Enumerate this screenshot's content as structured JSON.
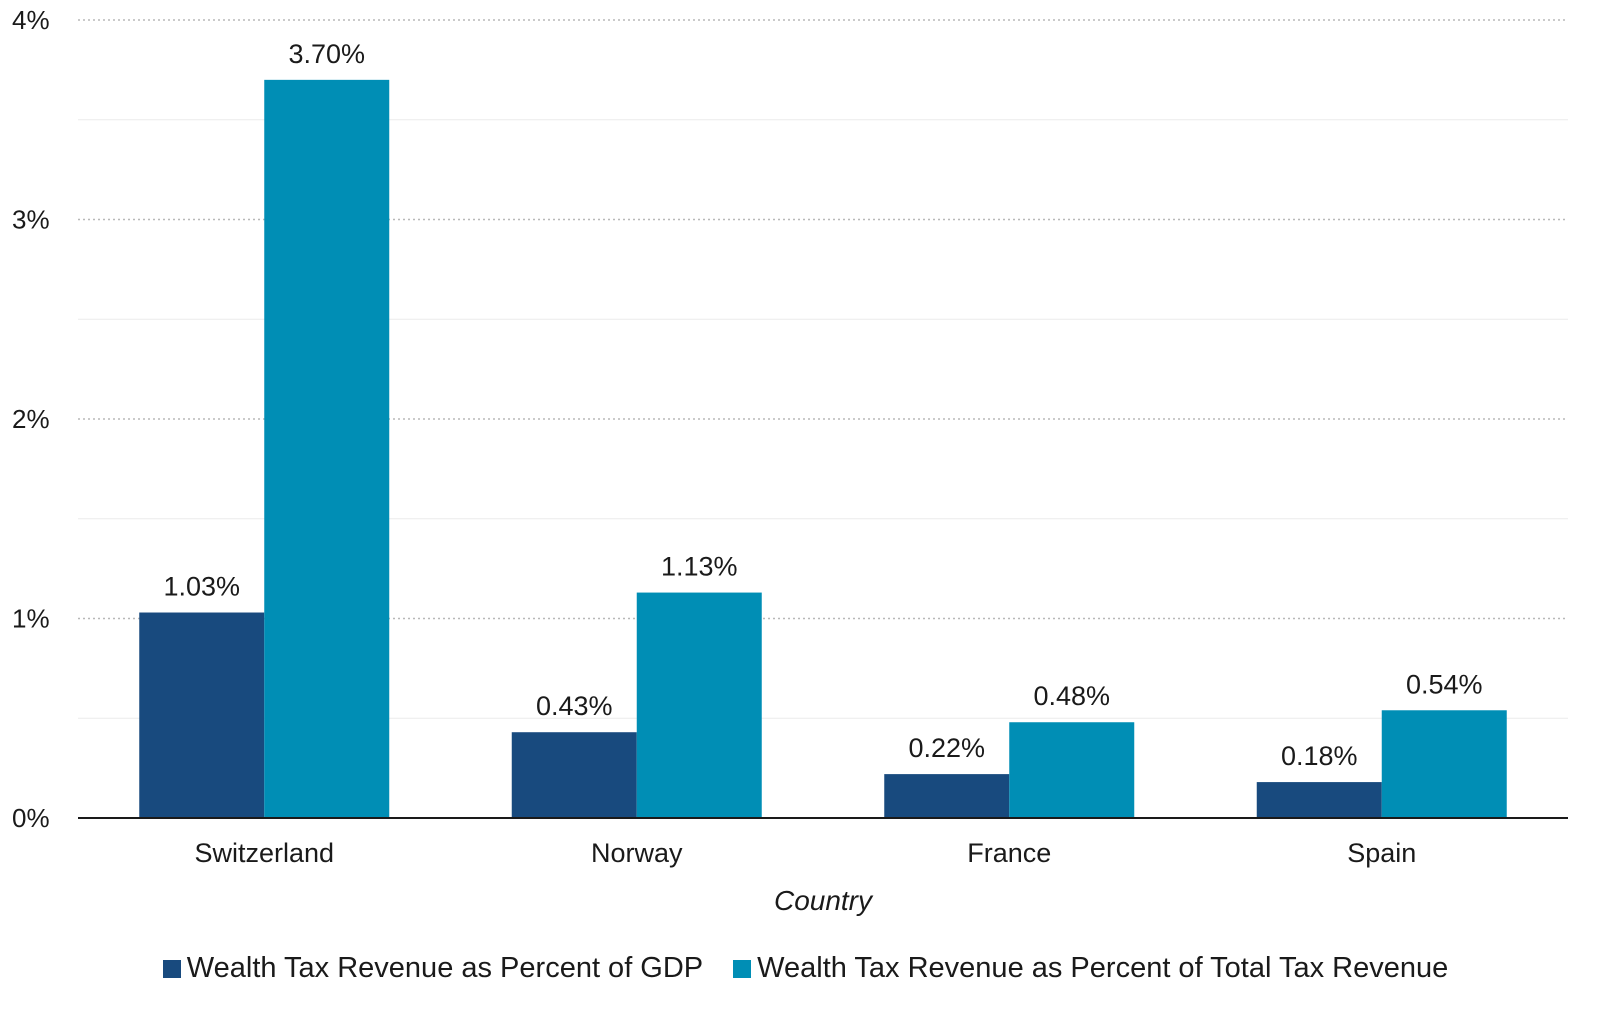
{
  "chart_data": {
    "type": "bar",
    "categories": [
      "Switzerland",
      "Norway",
      "France",
      "Spain"
    ],
    "series": [
      {
        "name": "Wealth Tax Revenue as Percent of GDP",
        "values": [
          1.03,
          0.43,
          0.22,
          0.18
        ],
        "labels": [
          "1.03%",
          "0.43%",
          "0.22%",
          "0.18%"
        ],
        "color": "#184a7e"
      },
      {
        "name": "Wealth Tax Revenue as Percent of Total Tax Revenue",
        "values": [
          3.7,
          1.13,
          0.48,
          0.54
        ],
        "labels": [
          "3.70%",
          "1.13%",
          "0.48%",
          "0.54%"
        ],
        "color": "#008eb5"
      }
    ],
    "xlabel": "Country",
    "ylabel": "",
    "ylim": [
      0,
      4
    ],
    "yticks": [
      0,
      1,
      2,
      3,
      4
    ],
    "ytick_labels": [
      "0%",
      "1%",
      "2%",
      "3%",
      "4%"
    ],
    "grid": true,
    "legend_position": "bottom-center"
  }
}
